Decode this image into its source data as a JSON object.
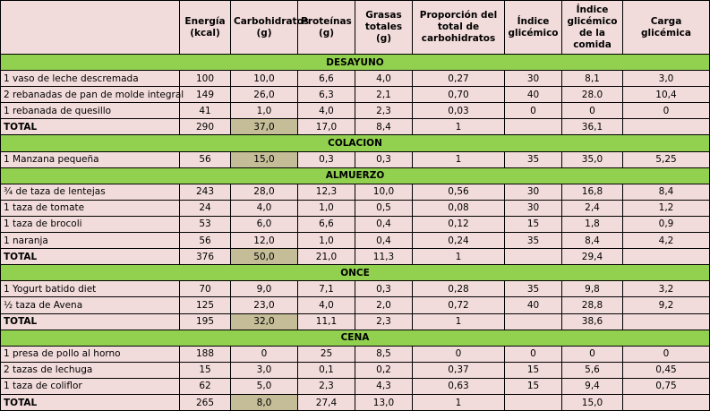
{
  "headers": [
    "",
    "Energía (kcal)",
    "Carbohidratos (g)",
    "Proteínas (g)",
    "Grasas totales (g)",
    "Proporción del total de carbohidratos",
    "Índice glicémico",
    "Índice glicémico de la comida",
    "Carga glicémica"
  ],
  "sections": [
    {
      "name": "DESAYUNO",
      "rows": [
        {
          "cells": [
            "1 vaso de leche descremada",
            "100",
            "10,0",
            "6,6",
            "4,0",
            "0,27",
            "30",
            "8,1",
            "3,0"
          ],
          "total": false
        },
        {
          "cells": [
            "2 rebanadas de pan de molde integral",
            "149",
            "26,0",
            "6,3",
            "2,1",
            "0,70",
            "40",
            "28.0",
            "10,4"
          ],
          "total": false
        },
        {
          "cells": [
            "1 rebanada de quesillo",
            "41",
            "1,0",
            "4,0",
            "2,3",
            "0,03",
            "0",
            "0",
            "0"
          ],
          "total": false
        },
        {
          "cells": [
            "TOTAL",
            "290",
            "37,0",
            "17,0",
            "8,4",
            "1",
            "",
            "36,1",
            ""
          ],
          "total": true
        }
      ]
    },
    {
      "name": "COLACION",
      "rows": [
        {
          "cells": [
            "1 Manzana pequeña",
            "56",
            "15,0",
            "0,3",
            "0,3",
            "1",
            "35",
            "35,0",
            "5,25"
          ],
          "total": false,
          "highlight": true
        }
      ]
    },
    {
      "name": "ALMUERZO",
      "rows": [
        {
          "cells": [
            "¾ de taza de lentejas",
            "243",
            "28,0",
            "12,3",
            "10,0",
            "0,56",
            "30",
            "16,8",
            "8,4"
          ],
          "total": false
        },
        {
          "cells": [
            "1 taza de tomate",
            "24",
            "4,0",
            "1,0",
            "0,5",
            "0,08",
            "30",
            "2,4",
            "1,2"
          ],
          "total": false
        },
        {
          "cells": [
            "1 taza de brocoli",
            "53",
            "6,0",
            "6,6",
            "0,4",
            "0,12",
            "15",
            "1,8",
            "0,9"
          ],
          "total": false
        },
        {
          "cells": [
            "1 naranja",
            "56",
            "12,0",
            "1,0",
            "0,4",
            "0,24",
            "35",
            "8,4",
            "4,2"
          ],
          "total": false
        },
        {
          "cells": [
            "TOTAL",
            "376",
            "50,0",
            "21,0",
            "11,3",
            "1",
            "",
            "29,4",
            ""
          ],
          "total": true
        }
      ]
    },
    {
      "name": "ONCE",
      "rows": [
        {
          "cells": [
            "1 Yogurt batido diet",
            "70",
            "9,0",
            "7,1",
            "0,3",
            "0,28",
            "35",
            "9,8",
            "3,2"
          ],
          "total": false
        },
        {
          "cells": [
            "½ taza de Avena",
            "125",
            "23,0",
            "4,0",
            "2,0",
            "0,72",
            "40",
            "28,8",
            "9,2"
          ],
          "total": false
        },
        {
          "cells": [
            "TOTAL",
            "195",
            "32,0",
            "11,1",
            "2,3",
            "1",
            "",
            "38,6",
            ""
          ],
          "total": true
        }
      ]
    },
    {
      "name": "CENA",
      "rows": [
        {
          "cells": [
            "1 presa de pollo al horno",
            "188",
            "0",
            "25",
            "8,5",
            "0",
            "0",
            "0",
            "0"
          ],
          "total": false
        },
        {
          "cells": [
            "2 tazas de lechuga",
            "15",
            "3,0",
            "0,1",
            "0,2",
            "0,37",
            "15",
            "5,6",
            "0,45"
          ],
          "total": false
        },
        {
          "cells": [
            "1 taza de coliflor",
            "62",
            "5,0",
            "2,3",
            "4,3",
            "0,63",
            "15",
            "9,4",
            "0,75"
          ],
          "total": false
        },
        {
          "cells": [
            "TOTAL",
            "265",
            "8,0",
            "27,4",
            "13,0",
            "1",
            "",
            "15,0",
            ""
          ],
          "total": true
        }
      ]
    }
  ],
  "colors": {
    "cell_bg": "#f2dcdb",
    "section_bg": "#92d050",
    "highlight_bg": "#c4bd97",
    "border": "#000000"
  }
}
